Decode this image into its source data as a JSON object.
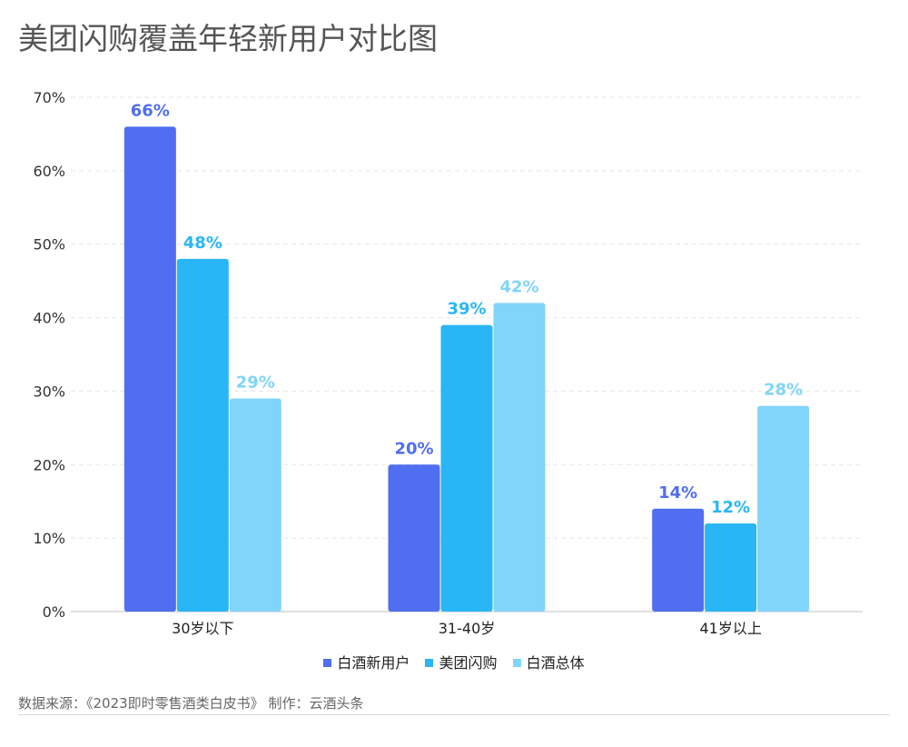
{
  "title": "美团闪购覆盖年轻新用户对比图",
  "source_text": "数据来源：《2023即时零售酒类白皮书》 制作：云酒头条",
  "chart_data": {
    "type": "bar",
    "title": "美团闪购覆盖年轻新用户对比图",
    "categories": [
      "30岁以下",
      "31-40岁",
      "41岁以上"
    ],
    "series": [
      {
        "name": "白酒新用户",
        "values": [
          66,
          20,
          14
        ],
        "color": "#4f6ef0"
      },
      {
        "name": "美团闪购",
        "values": [
          48,
          39,
          12
        ],
        "color": "#29b6f6"
      },
      {
        "name": "白酒总体",
        "values": [
          29,
          42,
          28
        ],
        "color": "#81d4fa"
      }
    ],
    "ylim": [
      0,
      70
    ],
    "yticks": [
      0,
      10,
      20,
      30,
      40,
      50,
      60,
      70
    ],
    "ytick_labels": [
      "0%",
      "10%",
      "20%",
      "30%",
      "40%",
      "50%",
      "60%",
      "70%"
    ],
    "data_labels": [
      [
        "66%",
        "20%",
        "14%"
      ],
      [
        "48%",
        "39%",
        "12%"
      ],
      [
        "29%",
        "42%",
        "28%"
      ]
    ],
    "grid": true,
    "legend_position": "bottom-center"
  }
}
